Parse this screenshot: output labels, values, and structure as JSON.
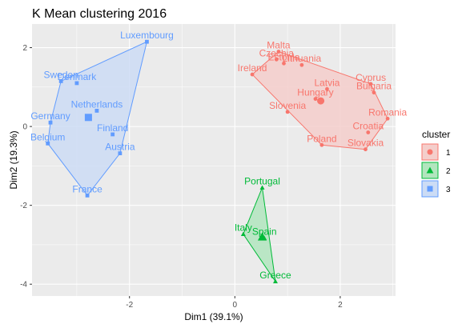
{
  "chart_data": {
    "type": "scatter",
    "title": "K Mean clustering 2016",
    "xlabel": "Dim1 (39.1%)",
    "ylabel": "Dim2 (19.3%)",
    "xlim": [
      -3.85,
      3.05
    ],
    "ylim": [
      -4.3,
      2.6
    ],
    "xticks": [
      -2,
      0,
      2
    ],
    "xtick_labels": [
      "-2",
      "0",
      "2"
    ],
    "yticks": [
      2,
      0,
      -2,
      -4
    ],
    "ytick_labels": [
      "2",
      "0",
      "-2",
      "-4"
    ],
    "grid": true,
    "legend": {
      "title": "cluster",
      "position": "right",
      "entries": [
        "1",
        "2",
        "3"
      ]
    },
    "series": [
      {
        "cluster": "1",
        "color": "#F8766D",
        "fill": "#F4CECB",
        "shape": "circle",
        "hull": [
          "Malta",
          "Cyprus",
          "Romania",
          "Slovakia",
          "Poland",
          "Ireland"
        ],
        "centroid": [
          1.63,
          0.65
        ],
        "points": [
          {
            "label": "Malta",
            "x": 0.83,
            "y": 1.9
          },
          {
            "label": "Czechia",
            "x": 0.79,
            "y": 1.7
          },
          {
            "label": "Estonia",
            "x": 0.93,
            "y": 1.6
          },
          {
            "label": "Lithuania",
            "x": 1.27,
            "y": 1.56
          },
          {
            "label": "Ireland",
            "x": 0.33,
            "y": 1.32
          },
          {
            "label": "Latvia",
            "x": 1.75,
            "y": 0.95
          },
          {
            "label": "Cyprus",
            "x": 2.58,
            "y": 1.08
          },
          {
            "label": "Bulgaria",
            "x": 2.64,
            "y": 0.86
          },
          {
            "label": "Romania",
            "x": 2.9,
            "y": 0.2
          },
          {
            "label": "Hungary",
            "x": 1.53,
            "y": 0.7
          },
          {
            "label": "Slovenia",
            "x": 1.0,
            "y": 0.37
          },
          {
            "label": "Poland",
            "x": 1.65,
            "y": -0.47
          },
          {
            "label": "Croatia",
            "x": 2.53,
            "y": -0.15
          },
          {
            "label": "Slovakia",
            "x": 2.48,
            "y": -0.58
          }
        ]
      },
      {
        "cluster": "2",
        "color": "#00BA38",
        "fill": "#B2E5BE",
        "shape": "triangle",
        "hull": [
          "Portugal",
          "Greece",
          "Italy"
        ],
        "centroid": [
          0.52,
          -2.8
        ],
        "points": [
          {
            "label": "Portugal",
            "x": 0.52,
            "y": -1.55
          },
          {
            "label": "Italy",
            "x": 0.16,
            "y": -2.73
          },
          {
            "label": "Spain",
            "x": 0.56,
            "y": -2.83
          },
          {
            "label": "Greece",
            "x": 0.77,
            "y": -3.93
          }
        ]
      },
      {
        "cluster": "3",
        "color": "#619CFF",
        "fill": "#CCDCF5",
        "shape": "square",
        "hull": [
          "Luxembourg",
          "Austria",
          "France",
          "Belgium",
          "Germany",
          "Sweden"
        ],
        "centroid": [
          -2.78,
          0.23
        ],
        "points": [
          {
            "label": "Luxembourg",
            "x": -1.67,
            "y": 2.15
          },
          {
            "label": "Sweden",
            "x": -3.3,
            "y": 1.15
          },
          {
            "label": "Denmark",
            "x": -3.0,
            "y": 1.1
          },
          {
            "label": "Netherlands",
            "x": -2.62,
            "y": 0.4
          },
          {
            "label": "Germany",
            "x": -3.5,
            "y": 0.1
          },
          {
            "label": "Finland",
            "x": -2.32,
            "y": -0.2
          },
          {
            "label": "Belgium",
            "x": -3.55,
            "y": -0.43
          },
          {
            "label": "Austria",
            "x": -2.18,
            "y": -0.68
          },
          {
            "label": "France",
            "x": -2.8,
            "y": -1.75
          }
        ]
      }
    ]
  }
}
